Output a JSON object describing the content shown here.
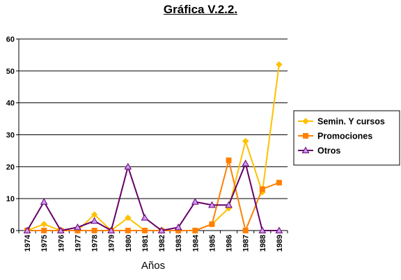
{
  "chart_data": {
    "type": "line",
    "title": "Gráfica V.2.2.",
    "xlabel": "Años",
    "ylabel": "",
    "ylim": [
      0,
      60
    ],
    "yticks": [
      0,
      10,
      20,
      30,
      40,
      50,
      60
    ],
    "grid": true,
    "legend_position": "right",
    "categories": [
      "1974",
      "1975",
      "1976",
      "1977",
      "1978",
      "1979",
      "1980",
      "1981",
      "1982",
      "1983",
      "1984",
      "1985",
      "1986",
      "1987",
      "1988",
      "1989"
    ],
    "series": [
      {
        "name": "Semin. Y cursos",
        "color": "#FFC000",
        "marker": "diamond",
        "values": [
          0,
          2,
          0,
          0,
          5,
          0,
          4,
          0,
          0,
          0,
          0,
          2,
          7,
          28,
          12,
          52
        ]
      },
      {
        "name": "Promociones",
        "color": "#FF8000",
        "marker": "square",
        "values": [
          0,
          0,
          0,
          0,
          0,
          0,
          0,
          0,
          0,
          0,
          0,
          2,
          22,
          0,
          13,
          15
        ]
      },
      {
        "name": "Otros",
        "color": "#660066",
        "marker": "triangle",
        "marker_fill": "#CC99FF",
        "values": [
          0,
          9,
          0,
          1,
          3,
          0,
          20,
          4,
          0,
          1,
          9,
          8,
          8,
          21,
          0,
          0
        ]
      }
    ]
  }
}
